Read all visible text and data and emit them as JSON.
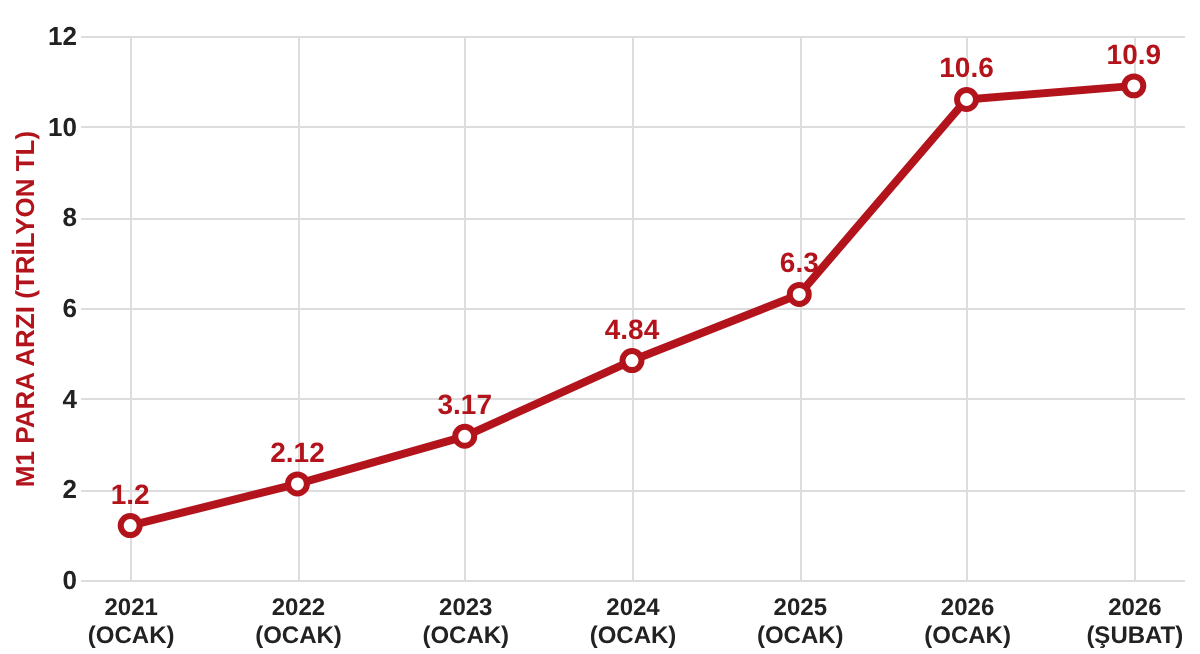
{
  "chart_data": {
    "type": "line",
    "ylabel": "M1 PARA ARZI (TRİLYON TL)",
    "categories": [
      "2021\n(OCAK)",
      "2022\n(OCAK)",
      "2023\n(OCAK)",
      "2024\n(OCAK)",
      "2025\n(OCAK)",
      "2026\n(OCAK)",
      "2026\n(ŞUBAT)"
    ],
    "series": [
      {
        "color": "#b3141c",
        "values": [
          1.2,
          2.12,
          3.17,
          4.84,
          6.3,
          10.6,
          10.9
        ]
      }
    ],
    "ylim": [
      0,
      12
    ],
    "yticks": [
      0,
      2,
      4,
      6,
      8,
      10,
      12
    ],
    "grid": true,
    "marker": "circle",
    "line_style": "solid",
    "data_labels": true
  }
}
